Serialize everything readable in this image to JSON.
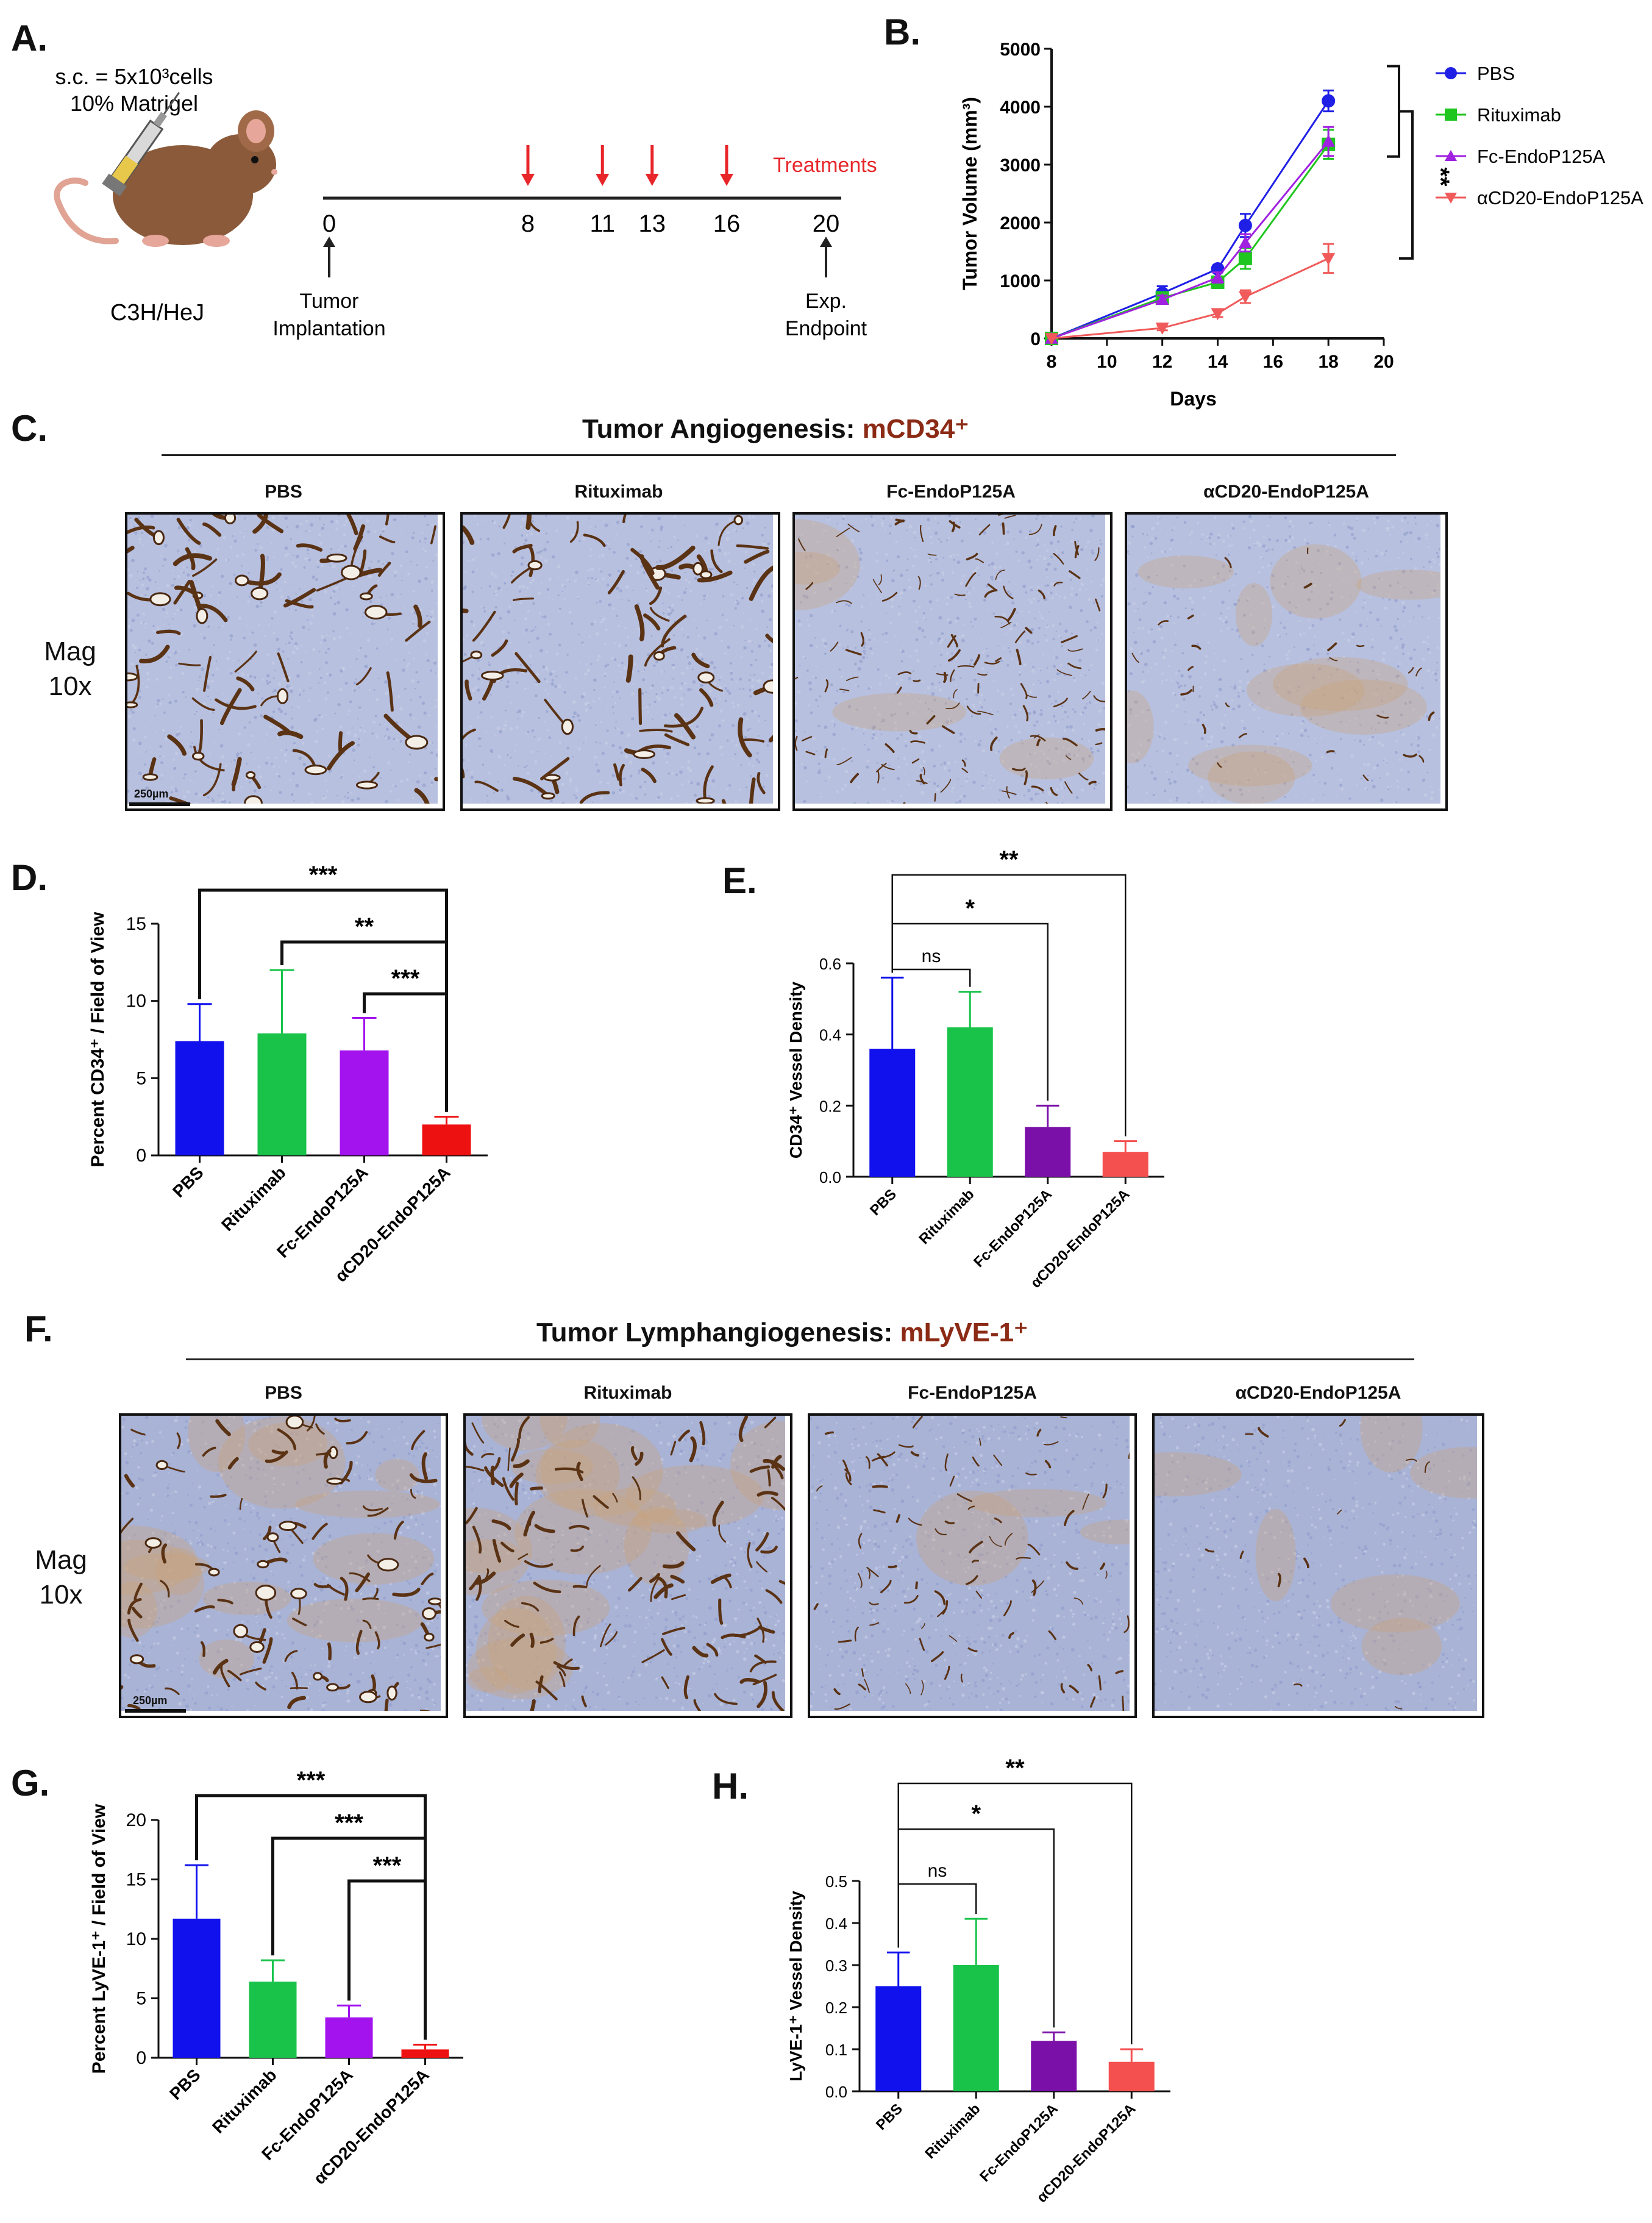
{
  "panels": {
    "A": "A.",
    "B": "B.",
    "C": "C.",
    "D": "D.",
    "E": "E.",
    "F": "F.",
    "G": "G.",
    "H": "H."
  },
  "panel_a": {
    "injection_line1": "s.c. = 5x10³cells",
    "injection_line2": "10% Matrigel",
    "strain": "C3H/HeJ",
    "timeline_days": [
      "0",
      "8",
      "11",
      "13",
      "16",
      "20"
    ],
    "treatment_days": [
      "8",
      "11",
      "13",
      "16"
    ],
    "treatments_label": "Treatments",
    "start_label_1": "Tumor",
    "start_label_2": "Implantation",
    "end_label_1": "Exp.",
    "end_label_2": "Endpoint",
    "colors": {
      "arrow": "#e8262a",
      "mouse": "#8a5a3a"
    }
  },
  "panel_c": {
    "title_prefix": "Tumor Angiogenesis: ",
    "title_marker": "mCD34⁺",
    "mag_line1": "Mag",
    "mag_line2": "10x",
    "scale": "250µm",
    "groups": [
      "PBS",
      "Rituximab",
      "Fc-EndoP125A",
      "αCD20-EndoP125A"
    ]
  },
  "panel_f": {
    "title_prefix": "Tumor Lymphangiogenesis: ",
    "title_marker": "mLyVE-1⁺",
    "mag_line1": "Mag",
    "mag_line2": "10x",
    "scale": "250µm",
    "groups": [
      "PBS",
      "Rituximab",
      "Fc-EndoP125A",
      "αCD20-EndoP125A"
    ]
  },
  "chart_data": [
    {
      "id": "B",
      "type": "line",
      "xlabel": "Days",
      "ylabel": "Tumor Volume (mm³)",
      "xlim": [
        8,
        20
      ],
      "ylim": [
        0,
        5000
      ],
      "xticks": [
        8,
        10,
        12,
        14,
        16,
        18,
        20
      ],
      "yticks": [
        0,
        1000,
        2000,
        3000,
        4000,
        5000
      ],
      "legend_position": "right",
      "series": [
        {
          "name": "PBS",
          "color": "#1f1fe6",
          "marker": "circle",
          "x": [
            8,
            12,
            14,
            15,
            18
          ],
          "y": [
            0,
            780,
            1200,
            1950,
            4100
          ],
          "err": [
            0,
            120,
            60,
            200,
            180
          ]
        },
        {
          "name": "Rituximab",
          "color": "#1fc61f",
          "marker": "square",
          "x": [
            8,
            12,
            14,
            15,
            18
          ],
          "y": [
            0,
            700,
            970,
            1380,
            3350
          ],
          "err": [
            0,
            80,
            100,
            180,
            250
          ]
        },
        {
          "name": "Fc-EndoP125A",
          "color": "#a021e0",
          "marker": "triangle-up",
          "x": [
            8,
            12,
            14,
            15,
            18
          ],
          "y": [
            0,
            670,
            1050,
            1650,
            3400
          ],
          "err": [
            0,
            70,
            90,
            150,
            250
          ]
        },
        {
          "name": "αCD20-EndoP125A",
          "color": "#f05a5a",
          "marker": "triangle-down",
          "x": [
            8,
            12,
            14,
            15,
            18
          ],
          "y": [
            0,
            180,
            430,
            720,
            1380
          ],
          "err": [
            0,
            40,
            60,
            110,
            250
          ]
        }
      ],
      "significance": [
        {
          "label": "**"
        }
      ]
    },
    {
      "id": "D",
      "type": "bar",
      "ylabel": "Percent CD34⁺ / Field of View",
      "categories": [
        "PBS",
        "Rituximab",
        "Fc-EndoP125A",
        "αCD20-EndoP125A"
      ],
      "values": [
        7.4,
        7.9,
        6.8,
        2.0
      ],
      "errors": [
        2.4,
        4.1,
        2.1,
        0.5
      ],
      "colors": [
        "#1111ee",
        "#19c34a",
        "#a313ee",
        "#ee1111"
      ],
      "ylim": [
        0,
        15
      ],
      "yticks": [
        0,
        5,
        10,
        15
      ],
      "significance": [
        {
          "from": 0,
          "to": 3,
          "label": "***"
        },
        {
          "from": 1,
          "to": 3,
          "label": "**"
        },
        {
          "from": 2,
          "to": 3,
          "label": "***"
        }
      ]
    },
    {
      "id": "E",
      "type": "bar",
      "ylabel": "CD34⁺ Vessel Density",
      "categories": [
        "PBS",
        "Rituximab",
        "Fc-EndoP125A",
        "αCD20-EndoP125A"
      ],
      "values": [
        0.36,
        0.42,
        0.14,
        0.07
      ],
      "errors": [
        0.2,
        0.1,
        0.06,
        0.03
      ],
      "colors": [
        "#1111ee",
        "#19c34a",
        "#7a10a8",
        "#f55050"
      ],
      "ylim": [
        0,
        0.6
      ],
      "yticks": [
        0.0,
        0.2,
        0.4,
        0.6
      ],
      "significance": [
        {
          "from": 0,
          "to": 3,
          "label": "**"
        },
        {
          "from": 0,
          "to": 2,
          "label": "*"
        },
        {
          "from": 0,
          "to": 1,
          "label": "ns"
        }
      ]
    },
    {
      "id": "G",
      "type": "bar",
      "ylabel": "Percent LyVE-1⁺ / Field of View",
      "categories": [
        "PBS",
        "Rituximab",
        "Fc-EndoP125A",
        "αCD20-EndoP125A"
      ],
      "values": [
        11.7,
        6.4,
        3.4,
        0.7
      ],
      "errors": [
        4.5,
        1.8,
        1.0,
        0.4
      ],
      "colors": [
        "#1111ee",
        "#19c34a",
        "#a313ee",
        "#ee1111"
      ],
      "ylim": [
        0,
        20
      ],
      "yticks": [
        0,
        5,
        10,
        15,
        20
      ],
      "significance": [
        {
          "from": 0,
          "to": 3,
          "label": "***"
        },
        {
          "from": 1,
          "to": 3,
          "label": "***"
        },
        {
          "from": 2,
          "to": 3,
          "label": "***"
        }
      ]
    },
    {
      "id": "H",
      "type": "bar",
      "ylabel": "LyVE-1⁺ Vessel Density",
      "categories": [
        "PBS",
        "Rituximab",
        "Fc-EndoP125A",
        "αCD20-EndoP125A"
      ],
      "values": [
        0.25,
        0.3,
        0.12,
        0.07
      ],
      "errors": [
        0.08,
        0.11,
        0.02,
        0.03
      ],
      "colors": [
        "#1111ee",
        "#19c34a",
        "#7a10a8",
        "#f55050"
      ],
      "ylim": [
        0,
        0.5
      ],
      "yticks": [
        0.0,
        0.1,
        0.2,
        0.3,
        0.4,
        0.5
      ],
      "significance": [
        {
          "from": 0,
          "to": 3,
          "label": "**"
        },
        {
          "from": 0,
          "to": 2,
          "label": "*"
        },
        {
          "from": 0,
          "to": 1,
          "label": "ns"
        }
      ]
    }
  ]
}
